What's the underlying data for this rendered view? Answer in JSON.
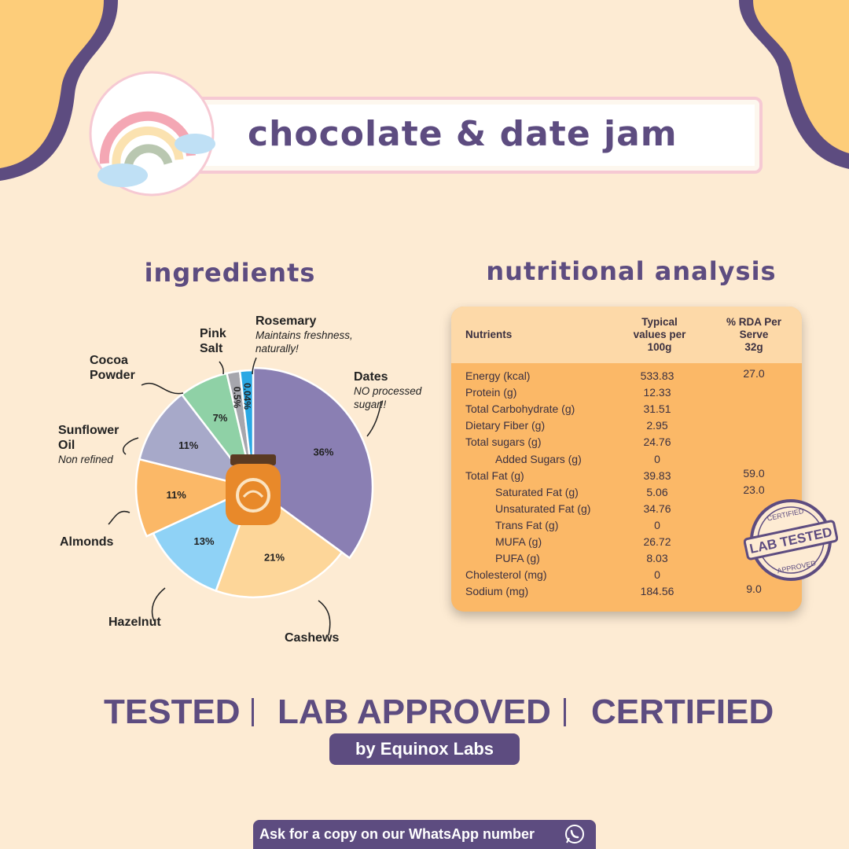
{
  "banner": {
    "title": "chocolate & date jam"
  },
  "ingredients_title": "ingredients",
  "nutrition_title": "nutritional analysis",
  "chart_data": {
    "type": "pie",
    "slices": [
      {
        "label": "Dates",
        "value": 36,
        "value_label": "36%",
        "note": "NO processed sugar!!",
        "color": "#8a7fb3"
      },
      {
        "label": "Cashews",
        "value": 21,
        "value_label": "21%",
        "note": "",
        "color": "#fdd699"
      },
      {
        "label": "Hazelnut",
        "value": 13,
        "value_label": "13%",
        "note": "",
        "color": "#8fd2f6"
      },
      {
        "label": "Almonds",
        "value": 11,
        "value_label": "11%",
        "note": "",
        "color": "#fbb867"
      },
      {
        "label": "Sunflower Oil",
        "value": 11,
        "value_label": "11%",
        "note": "Non refined",
        "color": "#a7a9c9"
      },
      {
        "label": "Cocoa Powder",
        "value": 7,
        "value_label": "7%",
        "note": "",
        "color": "#8fd1a6"
      },
      {
        "label": "Pink Salt",
        "value": 0.5,
        "value_label": "0.5%",
        "note": "",
        "color": "#a6a6ad"
      },
      {
        "label": "Rosemary",
        "value": 0.04,
        "value_label": "0.04%",
        "note": "Maintains freshness, naturally!",
        "color": "#2aa8e4"
      }
    ]
  },
  "pie_labels": {
    "dates": "Dates",
    "dates_note": "NO processed sugar!!",
    "cashews": "Cashews",
    "hazelnut": "Hazelnut",
    "almonds": "Almonds",
    "sunflower_line1": "Sunflower",
    "sunflower_line2": "Oil",
    "sunflower_note": "Non refined",
    "cocoa_line1": "Cocoa",
    "cocoa_line2": "Powder",
    "pink_line1": "Pink",
    "pink_line2": "Salt",
    "rosemary": "Rosemary",
    "rosemary_note1": "Maintains freshness,",
    "rosemary_note2": "naturally!"
  },
  "nutrition_table": {
    "headers": {
      "nutrients": "Nutrients",
      "typical_line1": "Typical",
      "typical_line2": "values per",
      "typical_line3": "100g",
      "rda_line1": "% RDA Per",
      "rda_line2": "Serve",
      "rda_line3": "32g"
    },
    "rows": [
      {
        "name": "Energy (kcal)",
        "value": "533.83",
        "rda": "27.0",
        "indent": false
      },
      {
        "name": "Protein (g)",
        "value": "12.33",
        "rda": "",
        "indent": false
      },
      {
        "name": "Total Carbohydrate (g)",
        "value": "31.51",
        "rda": "",
        "indent": false
      },
      {
        "name": "Dietary Fiber (g)",
        "value": "2.95",
        "rda": "",
        "indent": false
      },
      {
        "name": "Total sugars (g)",
        "value": "24.76",
        "rda": "",
        "indent": false
      },
      {
        "name": "Added Sugars (g)",
        "value": "0",
        "rda": "",
        "indent": true
      },
      {
        "name": "Total Fat (g)",
        "value": "39.83",
        "rda": "59.0",
        "indent": false
      },
      {
        "name": "Saturated Fat (g)",
        "value": "5.06",
        "rda": "23.0",
        "indent": true
      },
      {
        "name": "Unsaturated Fat (g)",
        "value": "34.76",
        "rda": "",
        "indent": true
      },
      {
        "name": "Trans Fat (g)",
        "value": "0",
        "rda": "",
        "indent": true
      },
      {
        "name": "MUFA (g)",
        "value": "26.72",
        "rda": "",
        "indent": true
      },
      {
        "name": "PUFA (g)",
        "value": "8.03",
        "rda": "",
        "indent": true
      },
      {
        "name": "Cholesterol (mg)",
        "value": "0",
        "rda": "",
        "indent": false
      },
      {
        "name": "Sodium (mg)",
        "value": "184.56",
        "rda": "9.0",
        "indent": false
      }
    ]
  },
  "stamp": {
    "top": "CERTIFIED",
    "center": "LAB TESTED",
    "bottom": "APPROVED"
  },
  "claims": {
    "tested": "TESTED",
    "lab_approved": "LAB APPROVED",
    "certified": "CERTIFIED"
  },
  "by_line": "by Equinox Labs",
  "whatsapp": {
    "label": "Ask for a copy on our WhatsApp number"
  },
  "colors": {
    "purple": "#5d4c80",
    "cream": "#fdebd3",
    "orange": "#fbb867",
    "yellow": "#fdcd7a"
  }
}
